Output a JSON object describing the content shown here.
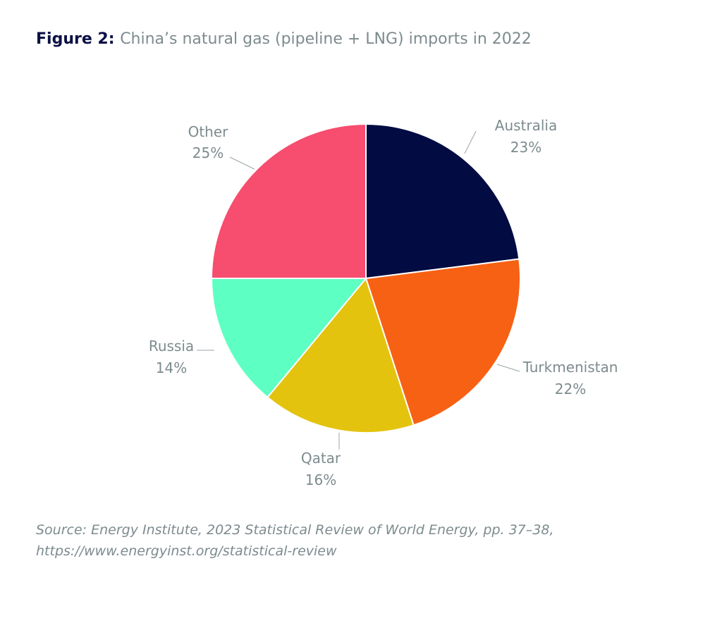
{
  "title": {
    "label": "Figure 2:",
    "text": "China’s natural gas (pipeline + LNG) imports in 2022"
  },
  "chart_data": {
    "type": "pie",
    "slices": [
      {
        "label": "Australia",
        "value": 23,
        "value_label": "23%",
        "color": "#020b42"
      },
      {
        "label": "Turkmenistan",
        "value": 22,
        "value_label": "22%",
        "color": "#f76114"
      },
      {
        "label": "Qatar",
        "value": 16,
        "value_label": "16%",
        "color": "#e4c30f"
      },
      {
        "label": "Russia",
        "value": 14,
        "value_label": "14%",
        "color": "#5effc2"
      },
      {
        "label": "Other",
        "value": 25,
        "value_label": "25%",
        "color": "#f74d6e"
      }
    ],
    "start": "12 o'clock",
    "direction": "clockwise",
    "label_color": "#7d8b8e"
  },
  "source": {
    "line1": "Source: Energy Institute, 2023 Statistical Review of World Energy, pp. 37–38,",
    "line2": "https://www.energyinst.org/statistical-review"
  }
}
